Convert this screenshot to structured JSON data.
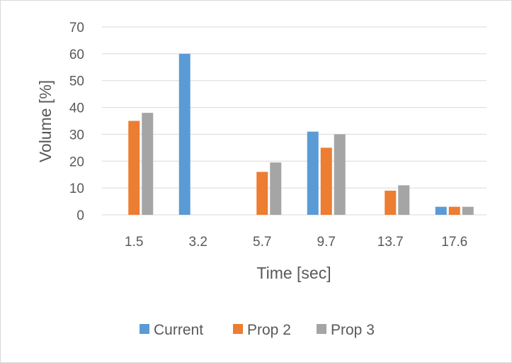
{
  "chart_data": {
    "type": "bar",
    "title": "",
    "xlabel": "Time [sec]",
    "ylabel": "Volume [%]",
    "categories": [
      "1.5",
      "3.2",
      "5.7",
      "9.7",
      "13.7",
      "17.6"
    ],
    "ylim": [
      0,
      70
    ],
    "yticks": [
      0,
      10,
      20,
      30,
      40,
      50,
      60,
      70
    ],
    "grid": true,
    "legend_position": "bottom",
    "series": [
      {
        "name": "Current",
        "color": "#5b9bd5",
        "values": [
          0,
          60,
          0,
          31,
          0,
          3
        ]
      },
      {
        "name": "Prop 2",
        "color": "#ed7d31",
        "values": [
          35,
          0,
          16,
          25,
          9,
          3
        ]
      },
      {
        "name": "Prop 3",
        "color": "#a5a5a5",
        "values": [
          38,
          0,
          19.5,
          30,
          11,
          3
        ]
      }
    ]
  }
}
